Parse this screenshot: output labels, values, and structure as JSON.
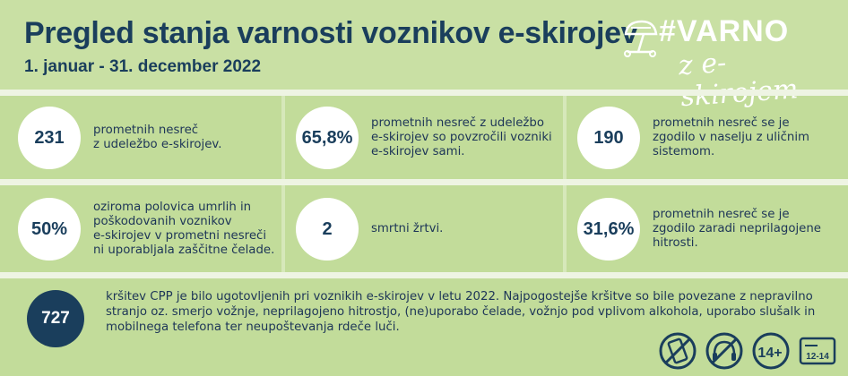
{
  "header": {
    "title": "Pregled stanja varnosti voznikov e-skirojev",
    "subtitle": "1. januar - 31. december 2022",
    "logo_line1": "#VARNO",
    "logo_line2": "z e-skirojem"
  },
  "stats": [
    {
      "value": "231",
      "text": "prometnih nesreč\nz udeležbo e-skirojev."
    },
    {
      "value": "65,8%",
      "text": "prometnih nesreč z udeležbo\ne-skirojev so povzročili vozniki\ne-skirojev sami."
    },
    {
      "value": "190",
      "text": "prometnih nesreč se je\nzgodilo v naselju z uličnim\nsistemom."
    },
    {
      "value": "50%",
      "text": "oziroma polovica umrlih in\npoškodovanih voznikov\ne-skirojev v prometni nesreči\nni uporabljala zaščitne čelade."
    },
    {
      "value": "2",
      "text": "smrtni žrtvi."
    },
    {
      "value": "31,6%",
      "text": "prometnih nesreč se je\nzgodilo zaradi neprilagojene\nhitrosti."
    }
  ],
  "bottom": {
    "value": "727",
    "text": "kršitev CPP je bilo ugotovljenih pri voznikih e-skirojev v letu 2022. Najpogostejše kršitve so bile povezane z nepravilno stranjo oz. smerjo vožnje, neprilagojeno hitrostjo, (ne)uporabo čelade, vožnjo pod vplivom alkohola, uporabo slušalk in mobilnega telefona ter neupoštevanja rdeče luči."
  },
  "icons": {
    "phone": "phone-prohibited-icon",
    "headphones": "headphones-prohibited-icon",
    "age": "age-14-plus-icon",
    "age_label": "14+",
    "license": "license-12-14-icon",
    "license_label": "12-14"
  },
  "colors": {
    "navy": "#1a3e5c",
    "green": "#c2dc9a",
    "white": "#ffffff"
  }
}
